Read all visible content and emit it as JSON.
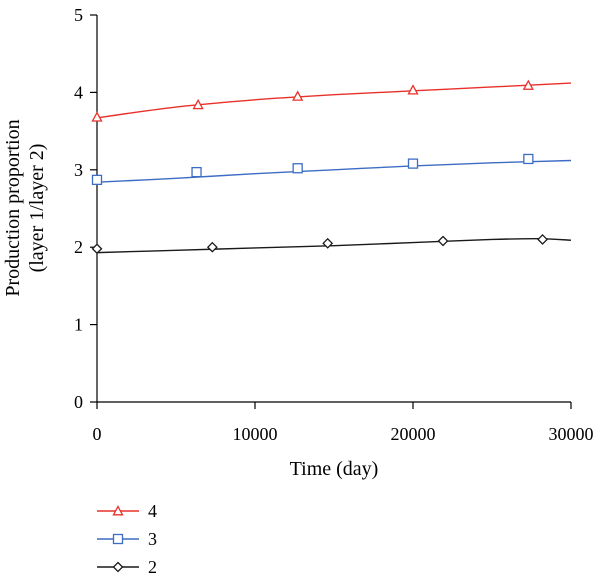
{
  "chart_data": {
    "type": "line",
    "title": "",
    "xlabel": "Time (day)",
    "ylabel_lines": [
      "Production proportion",
      "(layer 1/layer 2)"
    ],
    "xlim": [
      0,
      30000
    ],
    "ylim": [
      0,
      5
    ],
    "x_ticks": [
      0,
      10000,
      20000,
      30000
    ],
    "y_ticks": [
      0,
      1,
      2,
      3,
      4,
      5
    ],
    "grid": false,
    "legend_position": "bottom-left below plot",
    "series": [
      {
        "name": "4",
        "color": "#e8312a",
        "marker": "triangle",
        "curve": [
          [
            0,
            3.67
          ],
          [
            2000,
            3.73
          ],
          [
            5000,
            3.81
          ],
          [
            8000,
            3.87
          ],
          [
            11000,
            3.92
          ],
          [
            15000,
            3.97
          ],
          [
            20000,
            4.02
          ],
          [
            25000,
            4.07
          ],
          [
            30000,
            4.12
          ]
        ],
        "markers": [
          [
            0,
            3.68
          ],
          [
            6400,
            3.84
          ],
          [
            12700,
            3.95
          ],
          [
            20000,
            4.03
          ],
          [
            27300,
            4.09
          ]
        ]
      },
      {
        "name": "3",
        "color": "#3d6cc4",
        "marker": "square",
        "curve": [
          [
            0,
            2.84
          ],
          [
            5000,
            2.89
          ],
          [
            10000,
            2.95
          ],
          [
            15000,
            3.0
          ],
          [
            20000,
            3.05
          ],
          [
            25000,
            3.09
          ],
          [
            30000,
            3.12
          ]
        ],
        "markers": [
          [
            0,
            2.87
          ],
          [
            6300,
            2.97
          ],
          [
            12700,
            3.02
          ],
          [
            20000,
            3.08
          ],
          [
            27300,
            3.14
          ]
        ]
      },
      {
        "name": "2",
        "color": "#1a1a1a",
        "marker": "diamond",
        "curve": [
          [
            0,
            1.93
          ],
          [
            5000,
            1.96
          ],
          [
            10000,
            1.99
          ],
          [
            15000,
            2.02
          ],
          [
            20000,
            2.06
          ],
          [
            25000,
            2.1
          ],
          [
            28000,
            2.11
          ],
          [
            30000,
            2.09
          ]
        ],
        "markers": [
          [
            0,
            1.98
          ],
          [
            7300,
            2.0
          ],
          [
            14600,
            2.05
          ],
          [
            21900,
            2.08
          ],
          [
            28200,
            2.1
          ]
        ]
      }
    ]
  }
}
